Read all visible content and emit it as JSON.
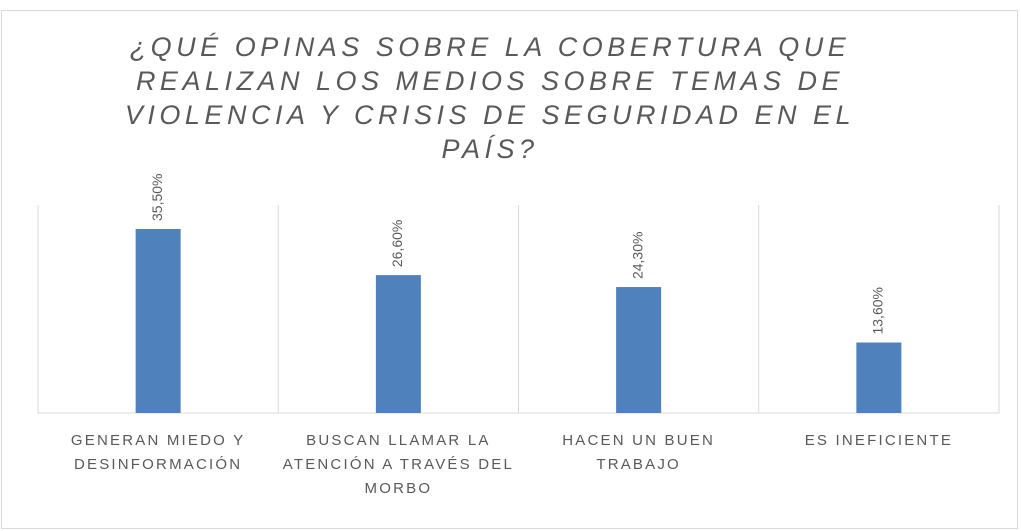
{
  "chart_data": {
    "type": "bar",
    "title": "¿QUÉ OPINAS SOBRE LA COBERTURA QUE REALIZAN LOS MEDIOS SOBRE TEMAS DE VIOLENCIA Y CRISIS DE SEGURIDAD EN EL PAÍS?",
    "categories": [
      "GENERAN MIEDO Y DESINFORMACIÓN",
      "BUSCAN LLAMAR LA ATENCIÓN A TRAVÉS DEL MORBO",
      "HACEN UN BUEN TRABAJO",
      "ES INEFICIENTE"
    ],
    "values": [
      35.5,
      26.6,
      24.3,
      13.6
    ],
    "value_labels": [
      "35,50%",
      "26,60%",
      "24,30%",
      "13,60%"
    ],
    "color": "#4f81bd"
  }
}
